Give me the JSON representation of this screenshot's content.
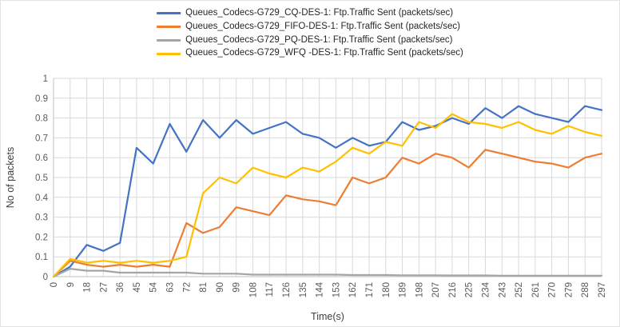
{
  "chart_data": {
    "type": "line",
    "title": "",
    "xlabel": "Time(s)",
    "ylabel": "No of packets",
    "xlim": [
      0,
      297
    ],
    "ylim": [
      0,
      1
    ],
    "ytick_step": 0.1,
    "grid": "both",
    "legend_position": "top-center",
    "axis_color": "#bfbfbf",
    "gridline_color": "#d9d9d9",
    "tick_label_color": "#595959",
    "axis_title_color": "#404040",
    "x": [
      0,
      9,
      18,
      27,
      36,
      45,
      54,
      63,
      72,
      81,
      90,
      99,
      108,
      117,
      126,
      135,
      144,
      153,
      162,
      171,
      180,
      189,
      198,
      207,
      216,
      225,
      234,
      243,
      252,
      261,
      270,
      279,
      288,
      297
    ],
    "series": [
      {
        "name": "Queues_Codecs-G729_CQ-DES-1: Ftp.Traffic Sent (packets/sec)",
        "color": "#4472C4",
        "values": [
          0,
          0.05,
          0.16,
          0.13,
          0.17,
          0.65,
          0.57,
          0.77,
          0.63,
          0.79,
          0.7,
          0.79,
          0.72,
          0.75,
          0.78,
          0.72,
          0.7,
          0.65,
          0.7,
          0.66,
          0.68,
          0.78,
          0.74,
          0.76,
          0.8,
          0.77,
          0.85,
          0.8,
          0.86,
          0.82,
          0.8,
          0.78,
          0.86,
          0.84
        ]
      },
      {
        "name": "Queues_Codecs-G729_FIFO-DES-1: Ftp.Traffic Sent (packets/sec)",
        "color": "#ED7D31",
        "values": [
          0,
          0.08,
          0.06,
          0.05,
          0.06,
          0.05,
          0.06,
          0.05,
          0.27,
          0.22,
          0.25,
          0.35,
          0.33,
          0.31,
          0.41,
          0.39,
          0.38,
          0.36,
          0.5,
          0.47,
          0.5,
          0.6,
          0.57,
          0.62,
          0.6,
          0.55,
          0.64,
          0.62,
          0.6,
          0.58,
          0.57,
          0.55,
          0.6,
          0.62
        ]
      },
      {
        "name": "Queues_Codecs-G729_PQ-DES-1: Ftp.Traffic Sent (packets/sec)",
        "color": "#A5A5A5",
        "values": [
          0,
          0.04,
          0.03,
          0.03,
          0.02,
          0.02,
          0.02,
          0.02,
          0.02,
          0.015,
          0.015,
          0.015,
          0.01,
          0.01,
          0.01,
          0.01,
          0.01,
          0.01,
          0.008,
          0.008,
          0.008,
          0.007,
          0.007,
          0.007,
          0.006,
          0.006,
          0.006,
          0.005,
          0.005,
          0.005,
          0.005,
          0.005,
          0.005,
          0.005
        ]
      },
      {
        "name": "Queues_Codecs-G729_WFQ -DES-1: Ftp.Traffic Sent (packets/sec)",
        "color": "#FFC000",
        "values": [
          0,
          0.09,
          0.07,
          0.08,
          0.07,
          0.08,
          0.07,
          0.08,
          0.1,
          0.42,
          0.5,
          0.47,
          0.55,
          0.52,
          0.5,
          0.55,
          0.53,
          0.58,
          0.65,
          0.62,
          0.68,
          0.66,
          0.78,
          0.75,
          0.82,
          0.78,
          0.77,
          0.75,
          0.78,
          0.74,
          0.72,
          0.76,
          0.73,
          0.71
        ]
      }
    ]
  }
}
